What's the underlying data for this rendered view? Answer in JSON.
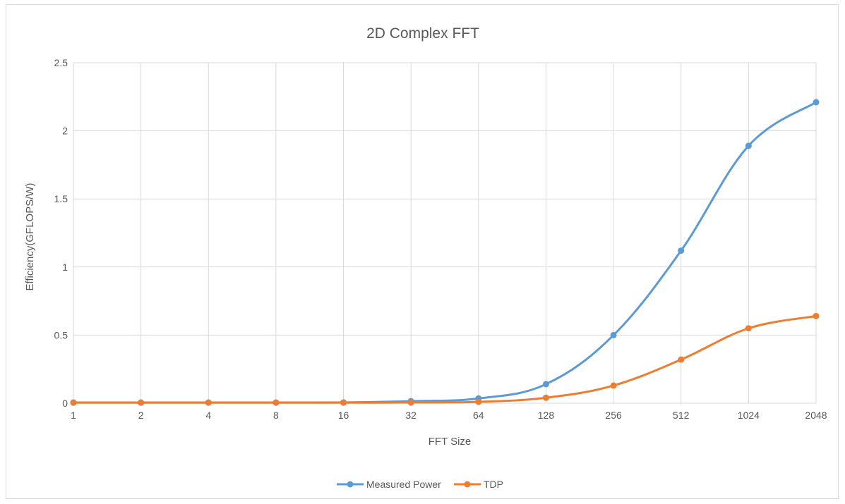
{
  "chart_data": {
    "type": "line",
    "title": "2D Complex FFT",
    "xlabel": "FFT Size",
    "ylabel": "Efficiency(GFLOPS/W)",
    "categories": [
      "1",
      "2",
      "4",
      "8",
      "16",
      "32",
      "64",
      "128",
      "256",
      "512",
      "1024",
      "2048"
    ],
    "ylim": [
      0,
      2.5
    ],
    "yticks": [
      "0",
      "0.5",
      "1",
      "1.5",
      "2",
      "2.5"
    ],
    "grid": true,
    "smooth": true,
    "legend_position": "bottom",
    "series": [
      {
        "name": "Measured Power",
        "color": "#5b9bd5",
        "values": [
          0.005,
          0.005,
          0.005,
          0.005,
          0.006,
          0.015,
          0.035,
          0.14,
          0.5,
          1.12,
          1.89,
          2.21
        ]
      },
      {
        "name": "TDP",
        "color": "#ed7d31",
        "values": [
          0.004,
          0.004,
          0.004,
          0.004,
          0.004,
          0.005,
          0.01,
          0.04,
          0.13,
          0.32,
          0.55,
          0.64
        ]
      }
    ]
  }
}
